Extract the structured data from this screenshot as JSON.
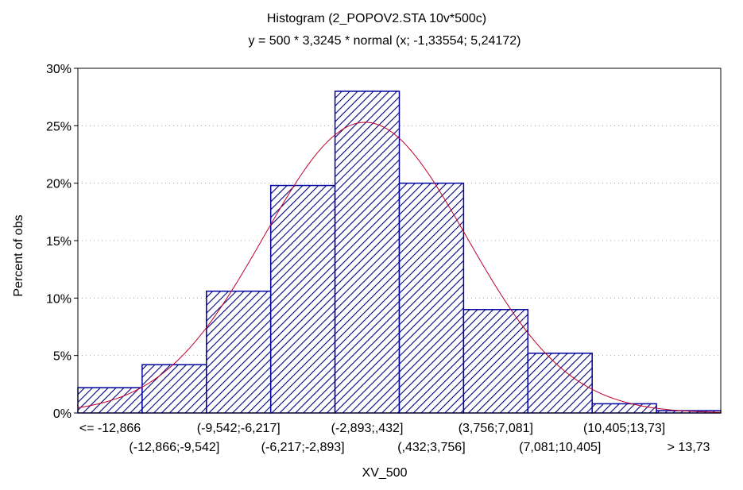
{
  "chart_data": {
    "type": "bar",
    "title": "Histogram (2_POPOV2.STA 10v*500c)",
    "subtitle": "y = 500 * 3,3245 * normal (x; -1,33554; 5,24172)",
    "xlabel": "XV_500",
    "ylabel": "Percent of obs",
    "ylim": [
      0,
      30
    ],
    "yticks": [
      "0%",
      "5%",
      "10%",
      "15%",
      "20%",
      "25%",
      "30%"
    ],
    "grid": true,
    "categories": [
      "<= -12,866",
      "(-12,866;-9,542]",
      "(-9,542;-6,217]",
      "(-6,217;-2,893]",
      "(-2,893;,432]",
      "(,432;3,756]",
      "(3,756;7,081]",
      "(7,081;10,405]",
      "(10,405;13,73]",
      "> 13,73"
    ],
    "series": [
      {
        "values": [
          2.2,
          4.2,
          10.6,
          19.8,
          28.0,
          20.0,
          9.0,
          5.2,
          0.8,
          0.2
        ]
      }
    ],
    "fit_curve": {
      "type": "normal",
      "mean": -1.33554,
      "sd": 5.24172,
      "n": 500,
      "bin_width": 3.3245,
      "color": "#c0002a"
    },
    "colors": {
      "bar_fill_hatch": "#000080",
      "bar_outline": "#0000a0",
      "axis": "#000000",
      "grid": "#999999"
    }
  }
}
